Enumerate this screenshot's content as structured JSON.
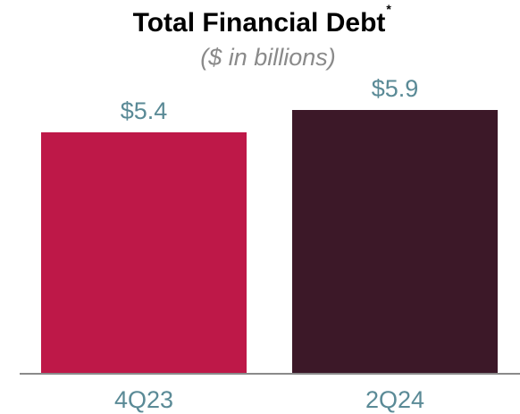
{
  "chart_data": {
    "type": "bar",
    "title": "Total Financial Debt",
    "title_mark": "*",
    "subtitle": "($ in billions)",
    "xlabel": "",
    "ylabel": "",
    "categories": [
      "4Q23",
      "2Q24"
    ],
    "values": [
      5.4,
      5.9
    ],
    "data_labels": [
      "$5.4",
      "$5.9"
    ],
    "ylim": [
      0,
      5.9
    ],
    "grid": false,
    "legend": "none",
    "colors": [
      "#be1848",
      "#3c1828"
    ],
    "label_color": "#5a8a96",
    "axis_color": "#8a8a8a"
  }
}
